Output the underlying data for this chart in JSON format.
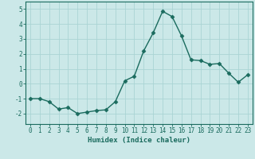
{
  "x": [
    0,
    1,
    2,
    3,
    4,
    5,
    6,
    7,
    8,
    9,
    10,
    11,
    12,
    13,
    14,
    15,
    16,
    17,
    18,
    19,
    20,
    21,
    22,
    23
  ],
  "y": [
    -1.0,
    -1.0,
    -1.2,
    -1.7,
    -1.6,
    -2.0,
    -1.9,
    -1.8,
    -1.75,
    -1.2,
    0.2,
    0.5,
    2.2,
    3.4,
    4.85,
    4.5,
    3.2,
    1.6,
    1.55,
    1.3,
    1.35,
    0.7,
    0.1,
    0.6
  ],
  "line_color": "#1a6b5e",
  "marker": "D",
  "marker_size": 2.5,
  "bg_color": "#cbe8e8",
  "grid_color": "#aad4d4",
  "xlabel": "Humidex (Indice chaleur)",
  "xlim": [
    -0.5,
    23.5
  ],
  "ylim": [
    -2.7,
    5.5
  ],
  "yticks": [
    -2,
    -1,
    0,
    1,
    2,
    3,
    4,
    5
  ],
  "xticks": [
    0,
    1,
    2,
    3,
    4,
    5,
    6,
    7,
    8,
    9,
    10,
    11,
    12,
    13,
    14,
    15,
    16,
    17,
    18,
    19,
    20,
    21,
    22,
    23
  ],
  "tick_fontsize": 5.5,
  "label_fontsize": 6.5,
  "line_width": 1.0
}
